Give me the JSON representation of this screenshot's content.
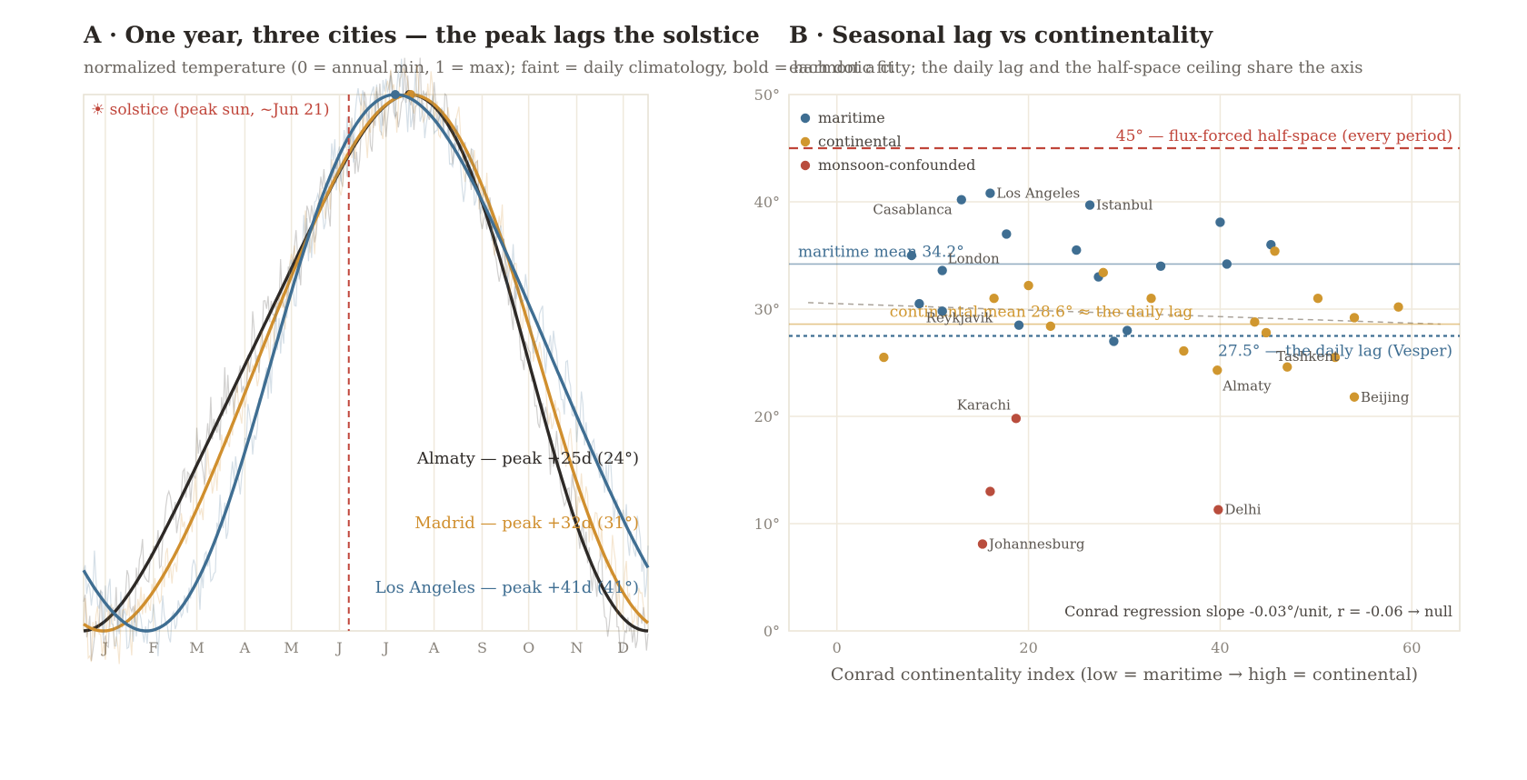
{
  "panel_a": {
    "title": "A · One year, three cities — the peak lags the solstice",
    "subtitle": "normalized temperature (0 = annual min, 1 = max); faint = daily climatology, bold = harmonic fit"
  },
  "panel_b": {
    "title": "B · Seasonal lag vs continentality",
    "subtitle": "each dot a city; the daily lag and the half-space ceiling share the axis"
  },
  "chart_data": [
    {
      "type": "line",
      "x_unit": "day of year",
      "xlim": [
        1,
        365
      ],
      "ylim": [
        0,
        1
      ],
      "month_ticks": [
        "J",
        "F",
        "M",
        "A",
        "M",
        "J",
        "J",
        "A",
        "S",
        "O",
        "N",
        "D"
      ],
      "month_tick_days": [
        15,
        46,
        74,
        105,
        135,
        166,
        196,
        227,
        258,
        288,
        319,
        349
      ],
      "grid": "vertical",
      "solstice": {
        "day": 172,
        "label": "☀ solstice (peak sun, ~Jun 21)",
        "color": "#c0453a"
      },
      "series": [
        {
          "name": "Almaty",
          "label": "Almaty — peak +25d (24°)",
          "peak_day": 197,
          "color": "#2d2926"
        },
        {
          "name": "Madrid",
          "label": "Madrid — peak +32d (31°)",
          "peak_day": 204,
          "color": "#d08f2e"
        },
        {
          "name": "Los Angeles",
          "label": "Los Angeles — peak +41d (41°)",
          "peak_day": 213,
          "color": "#3f6e92"
        }
      ]
    },
    {
      "type": "scatter",
      "xlabel": "Conrad continentality index (low = maritime → high = continental)",
      "xlim": [
        -5,
        65
      ],
      "ylim": [
        0,
        50
      ],
      "x_ticks": [
        0,
        20,
        40,
        60
      ],
      "y_ticks": [
        "0°",
        "10°",
        "20°",
        "30°",
        "40°",
        "50°"
      ],
      "y_tick_values": [
        0,
        10,
        20,
        30,
        40,
        50
      ],
      "grid": true,
      "legend": {
        "placement": "top-left",
        "items": [
          {
            "label": "maritime",
            "color": "#3f6e92"
          },
          {
            "label": "continental",
            "color": "#d0972f"
          },
          {
            "label": "monsoon-confounded",
            "color": "#b94d3d"
          }
        ]
      },
      "colors": {
        "maritime": "#3f6e92",
        "continental": "#d0972f",
        "monsoon-confounded": "#b94d3d"
      },
      "points": [
        {
          "x": 7.8,
          "y": 35.0,
          "group": "maritime",
          "label": ""
        },
        {
          "x": 8.6,
          "y": 30.5,
          "group": "maritime",
          "label": ""
        },
        {
          "x": 11.0,
          "y": 33.6,
          "group": "maritime",
          "label": "London"
        },
        {
          "x": 11.0,
          "y": 29.8,
          "group": "maritime",
          "label": "Reykjavik"
        },
        {
          "x": 13.0,
          "y": 40.2,
          "group": "maritime",
          "label": "Casablanca"
        },
        {
          "x": 16.0,
          "y": 40.8,
          "group": "maritime",
          "label": "Los Angeles"
        },
        {
          "x": 17.7,
          "y": 37.0,
          "group": "maritime",
          "label": ""
        },
        {
          "x": 19.0,
          "y": 28.5,
          "group": "maritime",
          "label": ""
        },
        {
          "x": 25.0,
          "y": 35.5,
          "group": "maritime",
          "label": ""
        },
        {
          "x": 26.4,
          "y": 39.7,
          "group": "maritime",
          "label": "Istanbul"
        },
        {
          "x": 27.3,
          "y": 33.0,
          "group": "maritime",
          "label": ""
        },
        {
          "x": 28.9,
          "y": 27.0,
          "group": "maritime",
          "label": ""
        },
        {
          "x": 30.3,
          "y": 28.0,
          "group": "maritime",
          "label": ""
        },
        {
          "x": 33.8,
          "y": 34.0,
          "group": "maritime",
          "label": ""
        },
        {
          "x": 40.0,
          "y": 38.1,
          "group": "maritime",
          "label": ""
        },
        {
          "x": 40.7,
          "y": 34.2,
          "group": "maritime",
          "label": ""
        },
        {
          "x": 45.3,
          "y": 36.0,
          "group": "maritime",
          "label": ""
        },
        {
          "x": 4.9,
          "y": 25.5,
          "group": "continental",
          "label": ""
        },
        {
          "x": 16.4,
          "y": 31.0,
          "group": "continental",
          "label": ""
        },
        {
          "x": 20.0,
          "y": 32.2,
          "group": "continental",
          "label": ""
        },
        {
          "x": 22.3,
          "y": 28.4,
          "group": "continental",
          "label": ""
        },
        {
          "x": 27.8,
          "y": 33.4,
          "group": "continental",
          "label": ""
        },
        {
          "x": 32.8,
          "y": 31.0,
          "group": "continental",
          "label": ""
        },
        {
          "x": 36.2,
          "y": 26.1,
          "group": "continental",
          "label": ""
        },
        {
          "x": 39.7,
          "y": 24.3,
          "group": "continental",
          "label": "Almaty"
        },
        {
          "x": 43.6,
          "y": 28.8,
          "group": "continental",
          "label": ""
        },
        {
          "x": 44.8,
          "y": 27.8,
          "group": "continental",
          "label": ""
        },
        {
          "x": 45.7,
          "y": 35.4,
          "group": "continental",
          "label": ""
        },
        {
          "x": 47.0,
          "y": 24.6,
          "group": "continental",
          "label": ""
        },
        {
          "x": 50.2,
          "y": 31.0,
          "group": "continental",
          "label": ""
        },
        {
          "x": 52.0,
          "y": 25.5,
          "group": "continental",
          "label": "Tashkent"
        },
        {
          "x": 54.0,
          "y": 29.2,
          "group": "continental",
          "label": ""
        },
        {
          "x": 54.0,
          "y": 21.8,
          "group": "continental",
          "label": "Beijing"
        },
        {
          "x": 58.6,
          "y": 30.2,
          "group": "continental",
          "label": ""
        },
        {
          "x": 18.7,
          "y": 19.8,
          "group": "monsoon-confounded",
          "label": "Karachi"
        },
        {
          "x": 16.0,
          "y": 13.0,
          "group": "monsoon-confounded",
          "label": ""
        },
        {
          "x": 15.2,
          "y": 8.1,
          "group": "monsoon-confounded",
          "label": "Johannesburg"
        },
        {
          "x": 39.8,
          "y": 11.3,
          "group": "monsoon-confounded",
          "label": "Delhi"
        }
      ],
      "reference_lines": [
        {
          "y": 45,
          "label": "45° — flux-forced half-space (every period)",
          "color": "#c0453a",
          "style": "dashed"
        },
        {
          "y": 34.2,
          "label": "maritime mean 34.2°",
          "color": "#3f6e92",
          "style": "solid"
        },
        {
          "y": 28.6,
          "label": "continental mean 28.6° ≈ the daily lag",
          "color": "#d0972f",
          "style": "solid"
        },
        {
          "y": 27.5,
          "label": "27.5° — the daily lag (Vesper)",
          "color": "#3f6e92",
          "style": "dotted"
        }
      ],
      "regression": {
        "x": [
          -3,
          63
        ],
        "y": [
          30.6,
          28.6
        ],
        "label": "Conrad regression slope -0.03°/unit, r = -0.06 → null"
      }
    }
  ]
}
